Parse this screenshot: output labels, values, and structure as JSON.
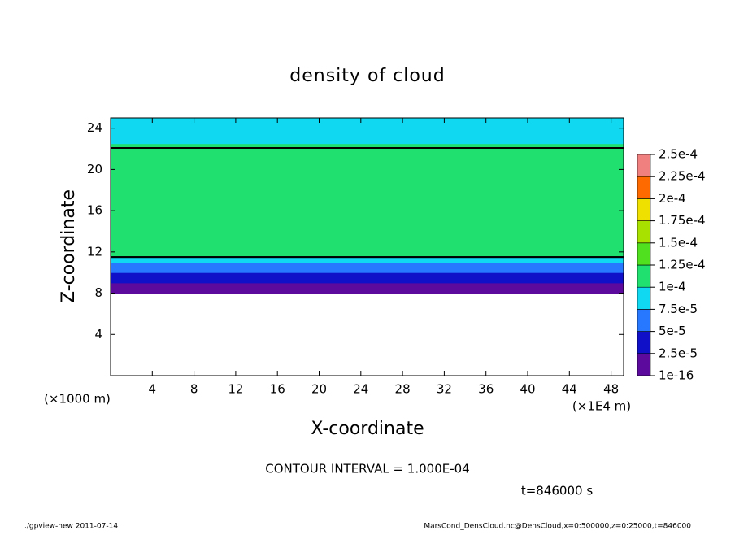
{
  "chart_data": {
    "type": "contour",
    "title": "density of cloud",
    "xlabel": "X-coordinate",
    "ylabel": "Z-coordinate",
    "xunit": "(×1E4 m)",
    "yunit": "(×1000 m)",
    "xlim": [
      0,
      49.2
    ],
    "xticks": [
      4,
      8,
      12,
      16,
      20,
      24,
      28,
      32,
      36,
      40,
      44,
      48
    ],
    "ylim": [
      0,
      25
    ],
    "yticks": [
      4,
      8,
      12,
      16,
      20,
      24
    ],
    "z": [
      8,
      8.5,
      9,
      9.5,
      10,
      10.5,
      11,
      11.5,
      12,
      12.5,
      13,
      14,
      15,
      16,
      17,
      18,
      19,
      20,
      21,
      22,
      22.5,
      23,
      24
    ],
    "values": [
      1e-05,
      2e-05,
      3e-05,
      4e-05,
      5.5e-05,
      7e-05,
      8.5e-05,
      0.0001,
      0.000105,
      0.000108,
      0.00011,
      0.000112,
      0.000114,
      0.000115,
      0.000114,
      0.000112,
      0.00011,
      0.000108,
      0.000105,
      0.000101,
      9.5e-05,
      9e-05,
      8.5e-05
    ],
    "levels": [
      {
        "value": 1e-16,
        "label": "1e-16"
      },
      {
        "value": 2.5e-05,
        "label": "2.5e-5"
      },
      {
        "value": 5e-05,
        "label": "5e-5"
      },
      {
        "value": 7.5e-05,
        "label": "7.5e-5"
      },
      {
        "value": 0.0001,
        "label": "1e-4"
      },
      {
        "value": 0.000125,
        "label": "1.25e-4"
      },
      {
        "value": 0.00015,
        "label": "1.5e-4"
      },
      {
        "value": 0.000175,
        "label": "1.75e-4"
      },
      {
        "value": 0.0002,
        "label": "2e-4"
      },
      {
        "value": 0.000225,
        "label": "2.25e-4"
      },
      {
        "value": 0.00025,
        "label": "2.5e-4"
      }
    ],
    "colors": [
      "#5c0a9e",
      "#1010c8",
      "#2878ff",
      "#10d8f0",
      "#20e070",
      "#50e020",
      "#a8e000",
      "#f0e000",
      "#ff6a00",
      "#f08080"
    ],
    "contour_interval_text": "CONTOUR INTERVAL = 1.000E-04",
    "time_text": "t=846000 s",
    "footer_left": "./gpview-new  2011-07-14",
    "footer_right": "MarsCond_DensCloud.nc@DensCloud,x=0:500000,z=0:25000,t=846000"
  }
}
